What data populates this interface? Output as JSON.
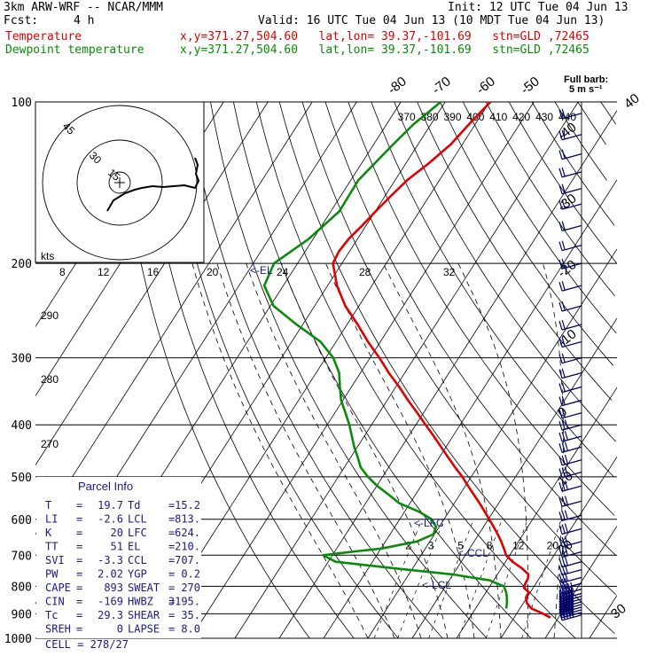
{
  "header": {
    "model": "3km ARW-WRF -- NCAR/MMM",
    "init": "Init: 12 UTC Tue 04 Jun 13",
    "fcst_label": "Fcst:",
    "fcst_value": "4 h",
    "valid": "Valid: 16 UTC Tue 04 Jun 13 (10 MDT Tue 04 Jun 13)",
    "temp_label": "Temperature",
    "dew_label": "Dewpoint temperature",
    "location": "x,y=371.27,504.60   lat,lon= 39.37,-101.69   stn=GLD ,72465"
  },
  "colors": {
    "temperature": "#e00000",
    "dewpoint": "#0a8a0a",
    "barb": "#000066",
    "marker": "#1a1a8a"
  },
  "chart_data": {
    "type": "skew-t",
    "y_axis": "pressure (hPa), log scale",
    "pressure_ticks": [
      100,
      200,
      300,
      400,
      500,
      600,
      700,
      800,
      900,
      1000
    ],
    "isotherm_labels": [
      -80,
      -70,
      -60,
      -50,
      -40,
      -30,
      -20,
      -10,
      0,
      10,
      20,
      30,
      40
    ],
    "theta_labels": [
      370,
      380,
      390,
      400,
      410,
      420,
      430,
      440
    ],
    "dry_adiabat_labels": [
      290,
      280,
      270
    ],
    "mixing_ratio_labels": [
      "2",
      "3",
      "5",
      "8",
      "12",
      "20"
    ],
    "temperature": {
      "name": "Temperature",
      "p": [
        915,
        895,
        880,
        860,
        840,
        820,
        805,
        790,
        775,
        760,
        740,
        720,
        700,
        680,
        660,
        640,
        620,
        600,
        580,
        560,
        540,
        520,
        500,
        480,
        460,
        440,
        420,
        400,
        380,
        360,
        340,
        320,
        300,
        280,
        260,
        240,
        220,
        200,
        190,
        180,
        170,
        160,
        150,
        140,
        130,
        120,
        110,
        100
      ],
      "t": [
        28.2,
        25.2,
        22.6,
        20.8,
        19.8,
        19.6,
        17.9,
        17.6,
        17.5,
        17.0,
        14.6,
        11.6,
        9.2,
        7.7,
        6.1,
        4.3,
        2.3,
        0.2,
        -2.0,
        -4.3,
        -6.8,
        -9.4,
        -12.0,
        -15.0,
        -18.0,
        -21.1,
        -24.3,
        -27.8,
        -31.4,
        -35.3,
        -39.2,
        -43.6,
        -47.9,
        -52.8,
        -57.6,
        -63.1,
        -67.9,
        -72.0,
        -72.4,
        -72.0,
        -70.9,
        -69.9,
        -68.7,
        -67.3,
        -64.8,
        -62.6,
        -61.4,
        -59.8
      ]
    },
    "dewpoint": {
      "name": "Dewpoint temperature",
      "p": [
        880,
        860,
        840,
        820,
        800,
        780,
        760,
        740,
        720,
        700,
        690,
        680,
        660,
        640,
        620,
        600,
        580,
        560,
        540,
        520,
        500,
        480,
        460,
        440,
        420,
        400,
        380,
        360,
        340,
        320,
        300,
        280,
        260,
        240,
        220,
        200,
        180,
        160,
        140,
        120,
        110,
        100
      ],
      "td": [
        16.9,
        16.3,
        15.5,
        14.5,
        13.2,
        9.1,
        -0.2,
        -14.4,
        -28.3,
        -32.1,
        -26.2,
        -19.8,
        -12.9,
        -10.2,
        -10.7,
        -12.8,
        -16.9,
        -22.4,
        -26.0,
        -29.9,
        -33.3,
        -36.3,
        -38.4,
        -40.7,
        -42.8,
        -45.0,
        -47.6,
        -50.4,
        -52.6,
        -54.8,
        -58.3,
        -63.5,
        -71.4,
        -79.3,
        -84.3,
        -85.3,
        -81.0,
        -78.1,
        -78.3,
        -75.6,
        -73.9,
        -71.0
      ]
    },
    "markers": [
      {
        "label": "<-EL",
        "p": 210
      },
      {
        "label": "<-LFC",
        "p": 625
      },
      {
        "label": "<-CCL",
        "p": 707
      },
      {
        "label": "<-LCL",
        "p": 813
      }
    ],
    "hodograph": {
      "units": "kts",
      "ring_labels": [
        "45",
        "30",
        "15"
      ]
    },
    "wind_barbs": {
      "legend_title": "Full barb:",
      "legend_value": "5 m s⁻¹",
      "pressures": [
        905,
        895,
        885,
        875,
        865,
        855,
        845,
        835,
        825,
        810,
        790,
        770,
        745,
        720,
        690,
        660,
        625,
        590,
        555,
        520,
        490,
        465,
        440,
        420,
        400,
        380,
        360,
        340,
        320,
        300,
        280,
        260,
        240,
        220,
        200,
        185,
        170,
        155,
        145,
        135,
        125,
        115,
        105
      ]
    }
  },
  "parcel_info": {
    "title": "Parcel Info",
    "rows": [
      {
        "k1": "T",
        "v1": "19.7",
        "k2": "Td",
        "v2": "15.2"
      },
      {
        "k1": "LI",
        "v1": "-2.6",
        "k2": "LCL",
        "v2": "813."
      },
      {
        "k1": "K",
        "v1": "20",
        "k2": "LFC",
        "v2": "624."
      },
      {
        "k1": "TT",
        "v1": "51",
        "k2": "EL",
        "v2": "210."
      },
      {
        "k1": "SVI",
        "v1": "-3.3",
        "k2": "CCL",
        "v2": "707."
      },
      {
        "k1": "PW",
        "v1": "2.02",
        "k2": "YGP",
        "v2": "0.2"
      },
      {
        "k1": "CAPE",
        "v1": "893",
        "k2": "SWEAT",
        "v2": "270"
      },
      {
        "k1": "CIN",
        "v1": "-169",
        "k2": "HWBZ",
        "v2": "3195."
      },
      {
        "k1": "Tc",
        "v1": "29.3",
        "k2": "SHEAR",
        "v2": "35."
      },
      {
        "k1": "SREH",
        "v1": "0",
        "k2": "LAPSE",
        "v2": "8.0"
      }
    ],
    "cell": "CELL = 278/27"
  }
}
